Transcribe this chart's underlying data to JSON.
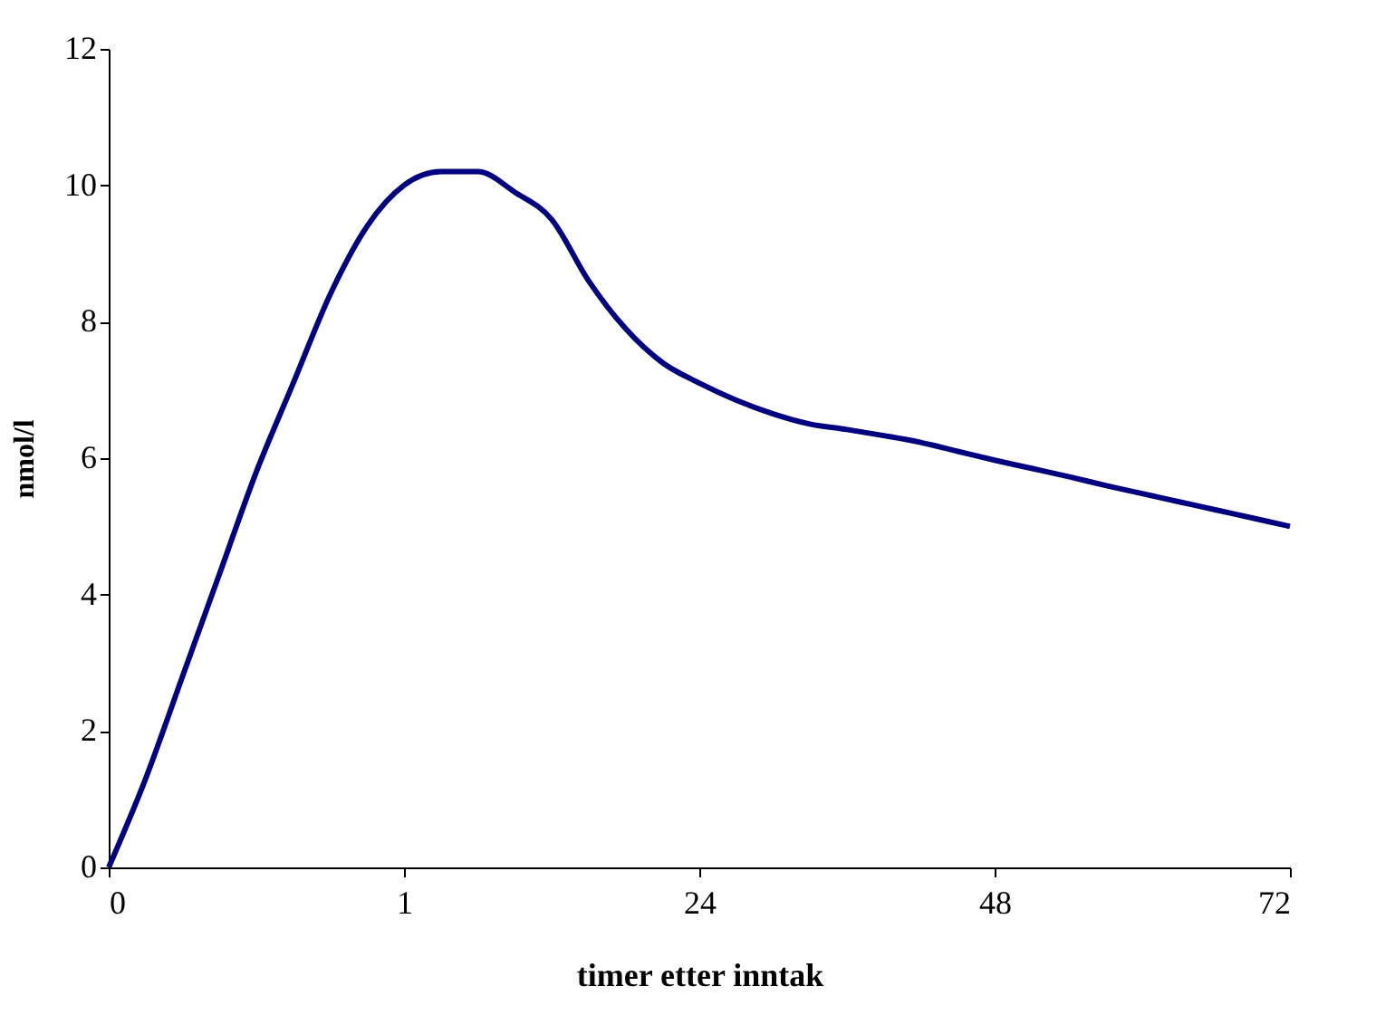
{
  "chart_data": {
    "type": "line",
    "xlabel": "timer etter inntak",
    "ylabel": "nmol/l",
    "categories": [
      "0",
      null,
      null,
      null,
      null,
      null,
      null,
      null,
      "1",
      null,
      null,
      null,
      null,
      null,
      null,
      null,
      "24",
      null,
      null,
      null,
      null,
      null,
      null,
      null,
      "48",
      null,
      null,
      null,
      null,
      null,
      null,
      null,
      "72"
    ],
    "series": [
      {
        "color": "#000080",
        "values": [
          0,
          1.3,
          2.8,
          4.3,
          5.8,
          7.1,
          8.4,
          9.4,
          10.0,
          10.2,
          10.2,
          9.9,
          9.5,
          8.6,
          7.9,
          7.4,
          7.1,
          6.85,
          6.65,
          6.5,
          6.42,
          6.33,
          6.23,
          6.1,
          5.97,
          5.85,
          5.73,
          5.6,
          5.48,
          5.36,
          5.24,
          5.12,
          5.0
        ]
      }
    ],
    "ylim": [
      0,
      12
    ],
    "yticks": [
      0,
      2,
      4,
      6,
      8,
      10,
      12
    ],
    "grid": false,
    "line_style": "solid",
    "marker": "none"
  }
}
